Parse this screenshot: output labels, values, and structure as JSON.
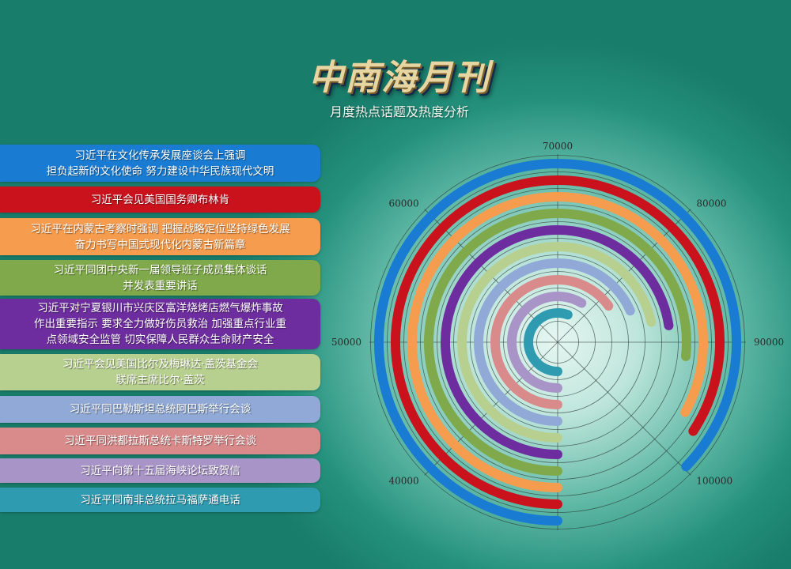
{
  "header": {
    "title": "中南海月刊",
    "subtitle": "月度热点话题及热度分析"
  },
  "chart_data": {
    "type": "radial-bar",
    "title": "中南海月刊",
    "subtitle": "月度热点话题及热度分析",
    "angular_axis": {
      "range": [
        30000,
        110000
      ],
      "start": "bottom",
      "direction": "clockwise",
      "ticks": [
        40000,
        50000,
        60000,
        70000,
        80000,
        90000,
        100000
      ],
      "tick_labels": [
        "40000",
        "50000",
        "60000",
        "70000",
        "80000",
        "90000",
        "100000"
      ]
    },
    "grid": true,
    "legend_placement": "left",
    "categories": [
      "习近平在文化传承发展座谈会上强调\n担负起新的文化使命 努力建设中华民族现代文明",
      "习近平会见美国国务卿布林肯",
      "习近平在内蒙古考察时强调 把握战略定位坚持绿色发展\n奋力书写中国式现代化内蒙古新篇章",
      "习近平同团中央新一届领导班子成员集体谈话\n并发表重要讲话",
      "习近平对宁夏银川市兴庆区富洋烧烤店燃气爆炸事故\n作出重要指示 要求全力做好伤员救治 加强重点行业重\n点领域安全监管 切实保障人民群众生命财产安全",
      "习近平会见美国比尔及梅琳达·盖茨基金会\n联席主席比尔·盖茨",
      "习近平同巴勒斯坦总统阿巴斯举行会谈",
      "习近平同洪都拉斯总统卡斯特罗举行会谈",
      "习近平向第十五届海峡论坛致贺信",
      "习近平同南非总统拉马福萨通电话"
    ],
    "values": [
      99800,
      97400,
      96400,
      91400,
      88100,
      87300,
      84800,
      82100,
      77000,
      74500
    ],
    "colors": [
      "#1a7bd2",
      "#c9121c",
      "#f69c4e",
      "#7fa94a",
      "#6d2d9f",
      "#b8d08f",
      "#90a9d6",
      "#d98b8b",
      "#a994c8",
      "#2f9bb1"
    ]
  }
}
